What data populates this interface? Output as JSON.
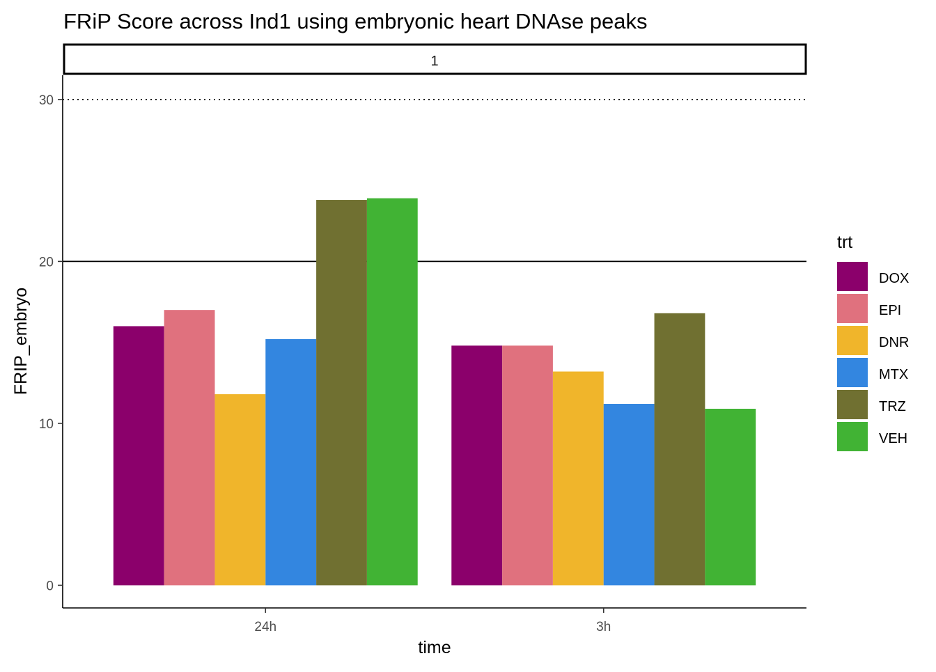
{
  "chart_data": {
    "type": "bar",
    "title": "FRiP Score across Ind1 using embryonic heart DNAse peaks",
    "facet_label": "1",
    "xlabel": "time",
    "ylabel": "FRIP_embryo",
    "categories": [
      "24h",
      "3h"
    ],
    "y_ticks": [
      "0",
      "10",
      "20",
      "30"
    ],
    "ylim": [
      -1.4,
      31.5
    ],
    "grid": false,
    "reference_lines": [
      {
        "y": 20,
        "style": "solid"
      },
      {
        "y": 30,
        "style": "dotted"
      }
    ],
    "legend": {
      "title": "trt",
      "position": "right"
    },
    "series": [
      {
        "name": "DOX",
        "color": "#8B006B",
        "values": [
          16.0,
          14.8
        ]
      },
      {
        "name": "EPI",
        "color": "#E0717E",
        "values": [
          17.0,
          14.8
        ]
      },
      {
        "name": "DNR",
        "color": "#F0B52B",
        "values": [
          11.8,
          13.2
        ]
      },
      {
        "name": "MTX",
        "color": "#3386E0",
        "values": [
          15.2,
          11.2
        ]
      },
      {
        "name": "TRZ",
        "color": "#707031",
        "values": [
          23.8,
          16.8
        ]
      },
      {
        "name": "VEH",
        "color": "#41B334",
        "values": [
          23.9,
          10.9
        ]
      }
    ]
  }
}
